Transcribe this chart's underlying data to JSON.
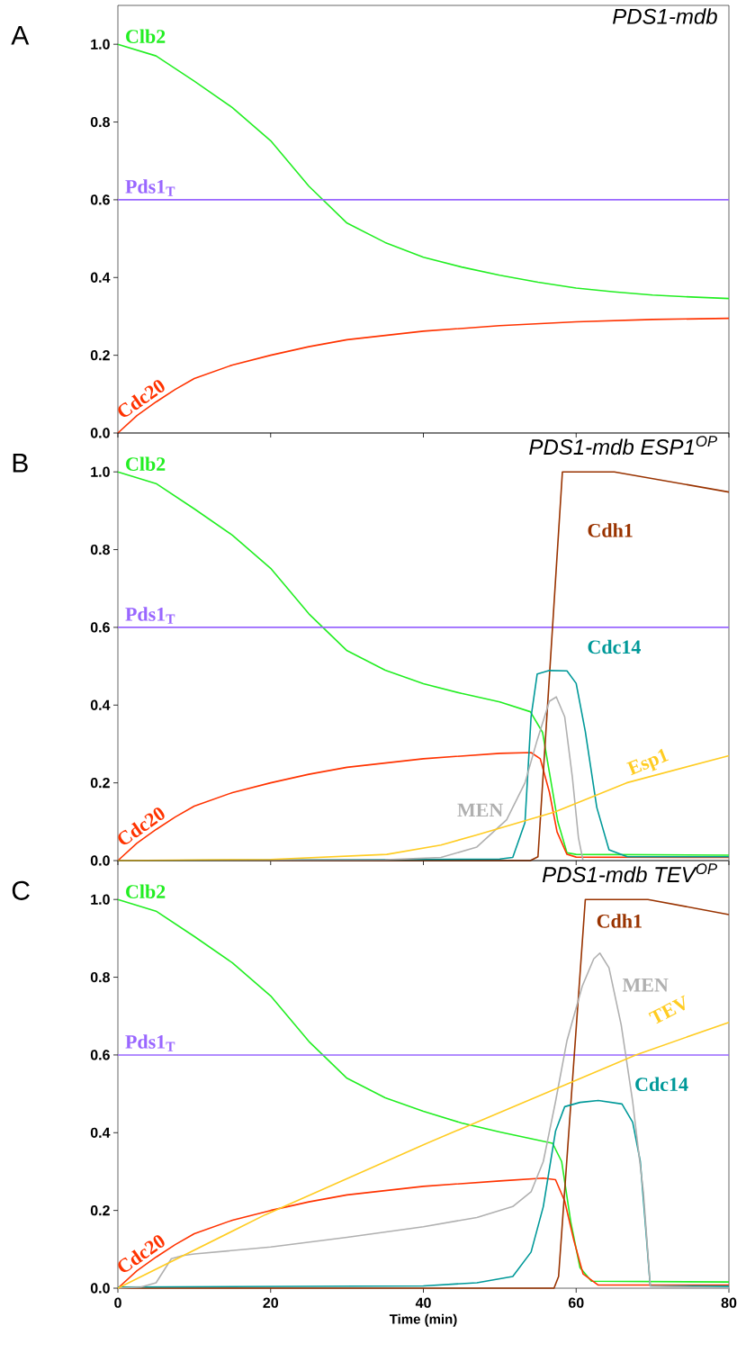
{
  "chart_data": [
    {
      "type": "line",
      "title": "*PDS1-mdb*",
      "annotations": [
        "A"
      ],
      "xlim": [
        0,
        80
      ],
      "ylim": [
        0,
        1.1
      ],
      "tick_labels": "y",
      "xticks": [
        0,
        20,
        40,
        60,
        80
      ],
      "yticks": [
        {
          "value": 0,
          "label": "0.0"
        },
        {
          "value": 0.2,
          "label": "0.2"
        },
        {
          "value": 0.4,
          "label": "0.4"
        },
        {
          "value": 0.6,
          "label": "0.6"
        },
        {
          "value": 0.8,
          "label": "0.8"
        },
        {
          "value": 1.0,
          "label": "1.0"
        }
      ],
      "series": [
        {
          "name": "Clb2",
          "color": "#22ee22",
          "x": [
            0,
            5,
            10,
            15,
            20,
            25,
            30,
            35,
            40,
            45,
            50,
            55,
            60,
            65,
            70,
            75,
            80
          ],
          "values": [
            1.0,
            0.97,
            0.905,
            0.837,
            0.752,
            0.635,
            0.54,
            0.49,
            0.452,
            0.427,
            0.406,
            0.388,
            0.373,
            0.363,
            0.355,
            0.35,
            0.346
          ]
        },
        {
          "name": "Cdc20",
          "color": "#ff3300",
          "x": [
            0,
            2.5,
            5,
            7.5,
            10,
            15,
            20,
            25,
            30,
            40,
            50,
            60,
            70,
            80
          ],
          "values": [
            0,
            0.045,
            0.08,
            0.112,
            0.14,
            0.175,
            0.2,
            0.222,
            0.24,
            0.262,
            0.276,
            0.286,
            0.292,
            0.295
          ]
        },
        {
          "name": "Pds1$_{T}$",
          "color": "#9966ff",
          "x": [
            0,
            80
          ],
          "values": [
            0.6,
            0.6
          ]
        }
      ]
    },
    {
      "type": "line",
      "title": "*PDS1-mdb ESP1$^{OP}$*",
      "annotations": [
        "B"
      ],
      "xlim": [
        0,
        80
      ],
      "ylim": [
        0,
        1.1
      ],
      "tick_labels": "y",
      "xticks": [
        0,
        20,
        40,
        60,
        80
      ],
      "yticks": [
        {
          "value": 0,
          "label": "0.0"
        },
        {
          "value": 0.2,
          "label": "0.2"
        },
        {
          "value": 0.4,
          "label": "0.4"
        },
        {
          "value": 0.6,
          "label": "0.6"
        },
        {
          "value": 0.8,
          "label": "0.8"
        },
        {
          "value": 1.0,
          "label": "1.0"
        }
      ],
      "series": [
        {
          "name": "Clb2",
          "color": "#22ee22",
          "x": [
            0,
            5,
            10,
            15,
            20,
            25,
            30,
            35,
            40,
            45,
            50,
            54,
            55.6,
            56.6,
            57.6,
            58.8,
            60,
            80
          ],
          "values": [
            1.0,
            0.97,
            0.905,
            0.837,
            0.752,
            0.635,
            0.54,
            0.49,
            0.455,
            0.43,
            0.408,
            0.383,
            0.33,
            0.215,
            0.1,
            0.02,
            0.016,
            0.014
          ]
        },
        {
          "name": "Cdc20",
          "color": "#ff3300",
          "x": [
            0,
            2.5,
            5,
            7.5,
            10,
            15,
            20,
            25,
            30,
            40,
            50,
            54.1,
            55.3,
            56.5,
            57.5,
            58.8,
            60,
            80
          ],
          "values": [
            0,
            0.045,
            0.08,
            0.112,
            0.14,
            0.175,
            0.2,
            0.222,
            0.24,
            0.262,
            0.276,
            0.278,
            0.262,
            0.176,
            0.074,
            0.016,
            0.009,
            0.008
          ]
        },
        {
          "name": "Pds1$_{T}$",
          "color": "#9966ff",
          "x": [
            0,
            80
          ],
          "values": [
            0.6,
            0.6
          ]
        },
        {
          "name": "Cdh1",
          "color": "#993300",
          "x": [
            0,
            54,
            55,
            58.2,
            65,
            80
          ],
          "values": [
            0,
            0,
            0.01,
            1.0,
            1.0,
            0.948
          ]
        },
        {
          "name": "Cdc14",
          "color": "#009999",
          "x": [
            0,
            50,
            51.7,
            53.3,
            54.1,
            54.9,
            56.5,
            58.8,
            60,
            61.2,
            62.7,
            64.3,
            66.7,
            80
          ],
          "values": [
            0,
            0.004,
            0.008,
            0.098,
            0.37,
            0.48,
            0.489,
            0.488,
            0.456,
            0.332,
            0.137,
            0.028,
            0.01,
            0.01
          ]
        },
        {
          "name": "MEN",
          "color": "#b0b0b0",
          "x": [
            0,
            35,
            42.3,
            47,
            50.9,
            53.3,
            54.9,
            56.5,
            57.4,
            58.5,
            59.5,
            60.3,
            60.9,
            80
          ],
          "values": [
            0,
            0.002,
            0.008,
            0.035,
            0.105,
            0.2,
            0.31,
            0.41,
            0.421,
            0.37,
            0.215,
            0.059,
            0,
            0
          ]
        },
        {
          "name": "Esp1",
          "color": "#ffcc22",
          "x": [
            0,
            20,
            35.2,
            42.3,
            47,
            57.2,
            66.6,
            80
          ],
          "values": [
            0,
            0.003,
            0.016,
            0.04,
            0.066,
            0.125,
            0.2,
            0.27
          ]
        }
      ]
    },
    {
      "type": "line",
      "title": "*PDS1-mdb TEV$^{OP}$*",
      "annotations": [
        "C"
      ],
      "xlabel": "Time (min)",
      "xlim": [
        0,
        80
      ],
      "ylim": [
        0,
        1.1
      ],
      "xticks": [
        0,
        20,
        40,
        60,
        80
      ],
      "yticks": [
        {
          "value": 0,
          "label": "0.0"
        },
        {
          "value": 0.2,
          "label": "0.2"
        },
        {
          "value": 0.4,
          "label": "0.4"
        },
        {
          "value": 0.6,
          "label": "0.6"
        },
        {
          "value": 0.8,
          "label": "0.8"
        },
        {
          "value": 1.0,
          "label": "1.0"
        }
      ],
      "series": [
        {
          "name": "Clb2",
          "color": "#22ee22",
          "x": [
            0,
            5,
            10,
            15,
            20,
            25,
            30,
            35,
            40,
            45,
            50,
            54,
            56.9,
            58.1,
            59.3,
            60.5,
            62,
            80
          ],
          "values": [
            1.0,
            0.97,
            0.905,
            0.837,
            0.752,
            0.635,
            0.54,
            0.49,
            0.455,
            0.425,
            0.402,
            0.385,
            0.373,
            0.326,
            0.17,
            0.053,
            0.018,
            0.016
          ]
        },
        {
          "name": "Cdc20",
          "color": "#ff3300",
          "x": [
            0,
            2.5,
            5,
            7.5,
            10,
            15,
            20,
            25,
            30,
            40,
            50,
            55.7,
            57.3,
            58.5,
            59.7,
            60.9,
            62.9,
            80
          ],
          "values": [
            0,
            0.045,
            0.08,
            0.112,
            0.14,
            0.175,
            0.2,
            0.222,
            0.24,
            0.262,
            0.276,
            0.283,
            0.279,
            0.224,
            0.123,
            0.037,
            0.008,
            0.008
          ]
        },
        {
          "name": "Pds1$_{T}$",
          "color": "#9966ff",
          "x": [
            0,
            80
          ],
          "values": [
            0.6,
            0.6
          ]
        },
        {
          "name": "Cdh1",
          "color": "#993300",
          "x": [
            0,
            57.1,
            57.7,
            61.2,
            69.4,
            80
          ],
          "values": [
            0,
            0,
            0.03,
            1.0,
            1.0,
            0.961
          ]
        },
        {
          "name": "Cdc14",
          "color": "#009999",
          "x": [
            0,
            40,
            47,
            51.7,
            54.1,
            55.7,
            57.3,
            58.5,
            60.5,
            62.9,
            66,
            67.4,
            68.4,
            69.2,
            69.7,
            80
          ],
          "values": [
            0.003,
            0.006,
            0.014,
            0.03,
            0.093,
            0.21,
            0.404,
            0.467,
            0.478,
            0.483,
            0.474,
            0.427,
            0.326,
            0.131,
            0.006,
            0.005
          ]
        },
        {
          "name": "MEN",
          "color": "#b0b0b0",
          "x": [
            0,
            3,
            5,
            6,
            7,
            8.5,
            10,
            20,
            30,
            40,
            47,
            51.7,
            54.1,
            55.7,
            57.3,
            58.8,
            60.8,
            62.3,
            63.1,
            64.3,
            65.9,
            67.4,
            68.8,
            69.7,
            80
          ],
          "values": [
            0,
            0.003,
            0.014,
            0.045,
            0.076,
            0.084,
            0.088,
            0.106,
            0.131,
            0.158,
            0.182,
            0.21,
            0.248,
            0.326,
            0.48,
            0.637,
            0.777,
            0.847,
            0.862,
            0.824,
            0.677,
            0.48,
            0.248,
            0.006,
            0
          ]
        },
        {
          "name": "TEV",
          "color": "#ffcc22",
          "x": [
            0,
            19.3,
            40,
            67.8,
            80
          ],
          "values": [
            0,
            0.189,
            0.369,
            0.6,
            0.684
          ]
        }
      ]
    }
  ]
}
